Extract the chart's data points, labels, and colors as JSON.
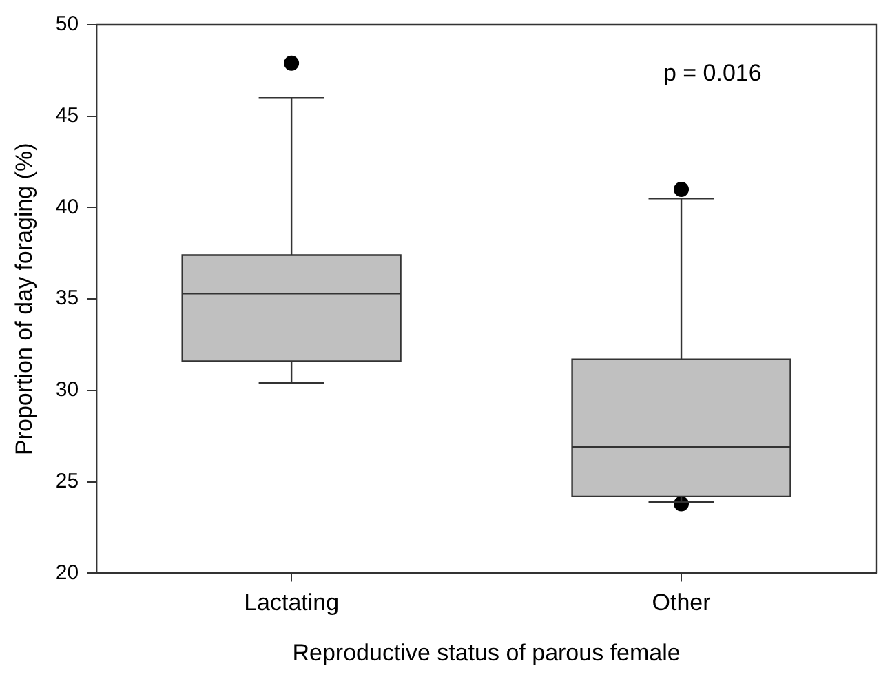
{
  "chart_data": {
    "type": "box",
    "xlabel": "Reproductive status of parous female",
    "ylabel": "Proportion of day foraging (%)",
    "categories": [
      "Lactating",
      "Other"
    ],
    "boxes": [
      {
        "low": 30.4,
        "q1": 31.6,
        "median": 35.3,
        "q3": 37.4,
        "high": 46.0,
        "outliers": [
          47.9
        ]
      },
      {
        "low": 23.9,
        "q1": 24.2,
        "median": 26.9,
        "q3": 31.7,
        "high": 40.5,
        "outliers": [
          41.0,
          23.8
        ]
      }
    ],
    "color": "#c0c0c0",
    "ylim": [
      20,
      50
    ],
    "yticks": [
      20,
      25,
      30,
      35,
      40,
      45,
      50
    ],
    "grid": false,
    "legend": false,
    "annotations": [
      "p = 0.016"
    ]
  }
}
